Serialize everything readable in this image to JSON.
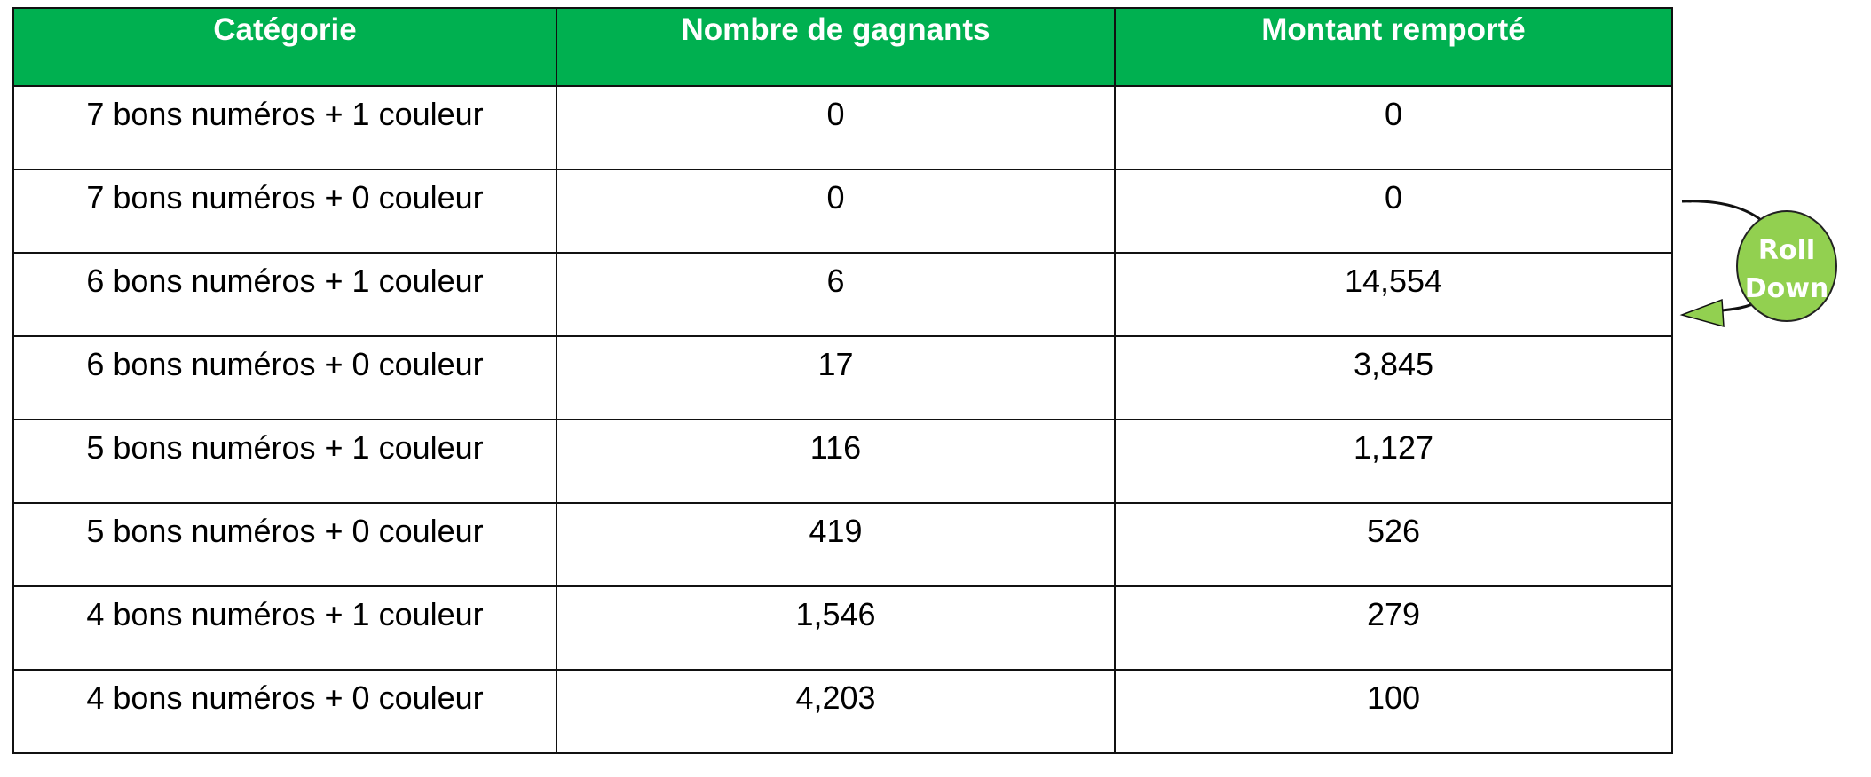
{
  "table": {
    "headers": [
      "Catégorie",
      "Nombre de gagnants",
      "Montant remporté"
    ],
    "header_color": "#00b050",
    "rows": [
      [
        "7 bons numéros + 1 couleur",
        "0",
        "0"
      ],
      [
        "7 bons numéros + 0 couleur",
        "0",
        "0"
      ],
      [
        "6 bons numéros + 1 couleur",
        "6",
        "14,554"
      ],
      [
        "6 bons numéros + 0 couleur",
        "17",
        "3,845"
      ],
      [
        "5 bons numéros + 1 couleur",
        "116",
        "1,127"
      ],
      [
        "5 bons numéros + 0 couleur",
        "419",
        "526"
      ],
      [
        "4 bons numéros + 1 couleur",
        "1,546",
        "279"
      ],
      [
        "4 bons numéros + 0 couleur",
        "4,203",
        "100"
      ]
    ]
  },
  "annotation": {
    "line1": "Roll",
    "line2": "Down",
    "icon": "curved-arrow-icon",
    "color": "#92d050"
  }
}
